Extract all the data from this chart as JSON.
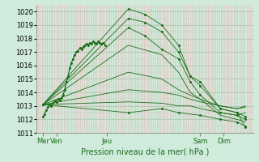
{
  "title": "Pression niveau de la mer( hPa )",
  "bg_color": "#d0eadc",
  "grid_color_v": "#e8b8b8",
  "grid_color_h": "#aacaaa",
  "line_color": "#1a6e1a",
  "ylim": [
    1011,
    1020.5
  ],
  "yticks": [
    1011,
    1012,
    1013,
    1014,
    1015,
    1016,
    1017,
    1018,
    1019,
    1020
  ],
  "xlim": [
    0,
    130
  ],
  "xtick_positions": [
    4,
    12,
    42,
    98,
    112
  ],
  "xtick_labels": [
    "Mer",
    "Ven",
    "Jeu",
    "Sam",
    "Dim"
  ],
  "fan_origin_x": 4,
  "fan_origin_y": 1013.1,
  "lines": [
    {
      "points": [
        [
          4,
          1013.1
        ],
        [
          55,
          1020.2
        ],
        [
          65,
          1019.8
        ],
        [
          75,
          1019.0
        ],
        [
          85,
          1017.5
        ],
        [
          92,
          1015.2
        ],
        [
          98,
          1014.8
        ],
        [
          110,
          1012.8
        ],
        [
          120,
          1012.5
        ],
        [
          125,
          1011.4
        ]
      ],
      "has_marker": true
    },
    {
      "points": [
        [
          4,
          1013.1
        ],
        [
          55,
          1019.5
        ],
        [
          65,
          1019.2
        ],
        [
          75,
          1018.5
        ],
        [
          85,
          1017.0
        ],
        [
          92,
          1015.2
        ],
        [
          98,
          1014.5
        ],
        [
          110,
          1012.8
        ],
        [
          120,
          1012.5
        ],
        [
          125,
          1012.2
        ]
      ],
      "has_marker": true
    },
    {
      "points": [
        [
          4,
          1013.1
        ],
        [
          55,
          1018.8
        ],
        [
          65,
          1018.2
        ],
        [
          75,
          1017.2
        ],
        [
          85,
          1016.5
        ],
        [
          92,
          1014.8
        ],
        [
          98,
          1013.8
        ],
        [
          110,
          1012.5
        ],
        [
          120,
          1012.3
        ],
        [
          125,
          1012.0
        ]
      ],
      "has_marker": true
    },
    {
      "points": [
        [
          4,
          1013.1
        ],
        [
          55,
          1017.5
        ],
        [
          75,
          1016.8
        ],
        [
          85,
          1015.5
        ],
        [
          92,
          1014.0
        ],
        [
          98,
          1013.5
        ],
        [
          110,
          1012.3
        ],
        [
          120,
          1012.0
        ],
        [
          125,
          1011.8
        ]
      ],
      "has_marker": false
    },
    {
      "points": [
        [
          4,
          1013.1
        ],
        [
          55,
          1015.5
        ],
        [
          75,
          1015.0
        ],
        [
          85,
          1014.2
        ],
        [
          92,
          1013.8
        ],
        [
          98,
          1013.5
        ],
        [
          110,
          1013.0
        ],
        [
          120,
          1012.8
        ],
        [
          125,
          1013.0
        ]
      ],
      "has_marker": false
    },
    {
      "points": [
        [
          4,
          1013.1
        ],
        [
          55,
          1014.2
        ],
        [
          75,
          1014.0
        ],
        [
          85,
          1013.8
        ],
        [
          92,
          1013.5
        ],
        [
          98,
          1013.3
        ],
        [
          110,
          1013.0
        ],
        [
          120,
          1012.8
        ],
        [
          125,
          1012.9
        ]
      ],
      "has_marker": false
    },
    {
      "points": [
        [
          4,
          1013.1
        ],
        [
          55,
          1013.3
        ],
        [
          75,
          1013.2
        ],
        [
          85,
          1013.0
        ],
        [
          92,
          1013.0
        ],
        [
          98,
          1012.8
        ],
        [
          110,
          1012.5
        ],
        [
          120,
          1012.3
        ],
        [
          125,
          1012.5
        ]
      ],
      "has_marker": false
    },
    {
      "points": [
        [
          4,
          1013.1
        ],
        [
          55,
          1012.5
        ],
        [
          75,
          1012.8
        ],
        [
          85,
          1012.5
        ],
        [
          98,
          1012.3
        ],
        [
          110,
          1012.0
        ],
        [
          120,
          1011.8
        ],
        [
          125,
          1011.5
        ]
      ],
      "has_marker": true
    }
  ],
  "obs_noisy": [
    [
      4,
      1012.2
    ],
    [
      5,
      1012.4
    ],
    [
      6,
      1012.7
    ],
    [
      7,
      1012.9
    ],
    [
      8,
      1013.1
    ],
    [
      9,
      1013.0
    ],
    [
      10,
      1013.2
    ],
    [
      11,
      1013.4
    ],
    [
      12,
      1013.3
    ],
    [
      13,
      1013.5
    ],
    [
      14,
      1013.4
    ],
    [
      15,
      1013.6
    ],
    [
      16,
      1013.8
    ],
    [
      17,
      1014.2
    ],
    [
      18,
      1014.8
    ],
    [
      19,
      1015.2
    ],
    [
      20,
      1015.8
    ],
    [
      21,
      1016.2
    ],
    [
      22,
      1016.5
    ],
    [
      23,
      1016.8
    ],
    [
      24,
      1017.0
    ],
    [
      25,
      1017.1
    ],
    [
      26,
      1017.3
    ],
    [
      27,
      1017.2
    ],
    [
      28,
      1017.4
    ],
    [
      29,
      1017.5
    ],
    [
      30,
      1017.6
    ],
    [
      31,
      1017.5
    ],
    [
      32,
      1017.7
    ],
    [
      33,
      1017.6
    ],
    [
      34,
      1017.8
    ],
    [
      35,
      1017.7
    ],
    [
      36,
      1017.6
    ],
    [
      37,
      1017.8
    ],
    [
      38,
      1017.7
    ],
    [
      39,
      1017.6
    ],
    [
      40,
      1017.7
    ],
    [
      41,
      1017.5
    ]
  ],
  "ylabel_fontsize": 7,
  "xlabel_fontsize": 7,
  "tick_fontsize": 6
}
